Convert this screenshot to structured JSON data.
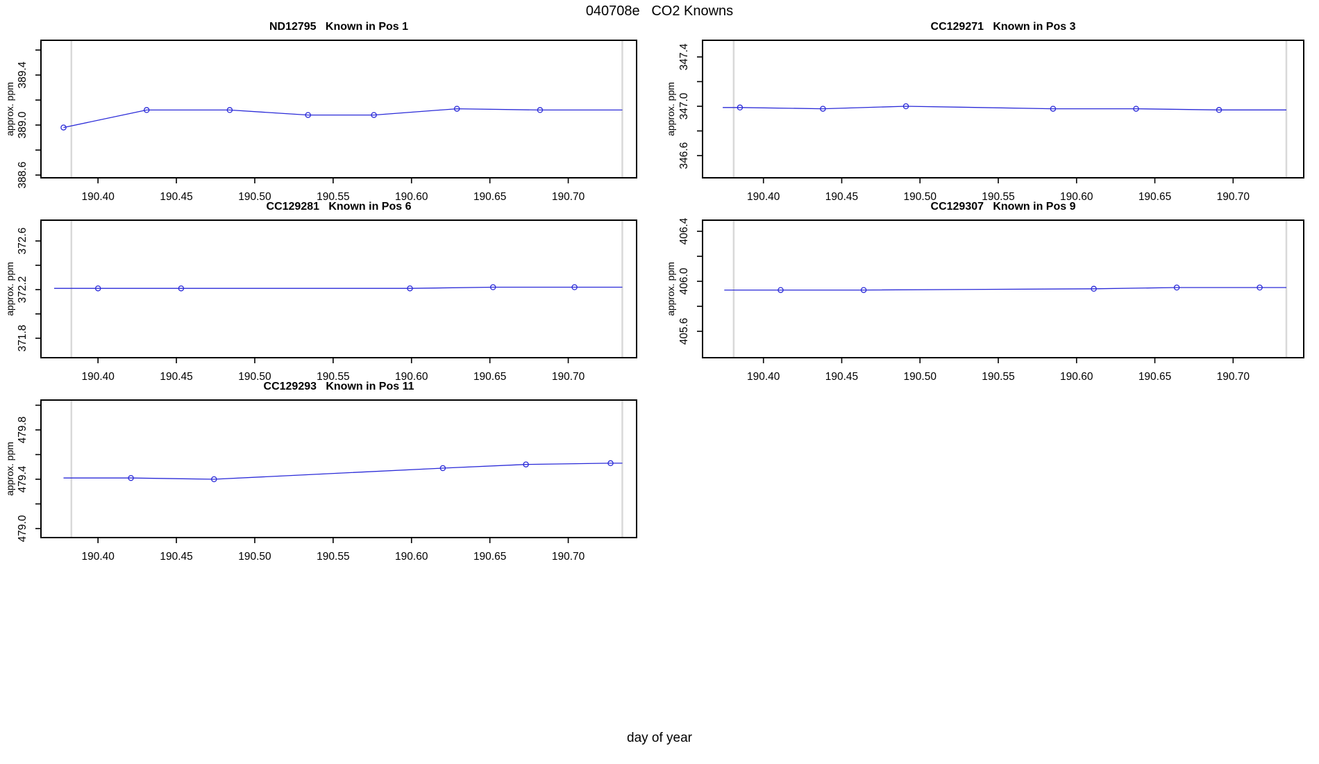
{
  "title": "040708e   CO2 Knowns",
  "xlabel": "day of year",
  "colors": {
    "line": "#2a2ad8",
    "marker": "#2a2ad8",
    "gray_vline": "#d9d9d9",
    "frame": "#000000",
    "text": "#000000",
    "background": "#ffffff"
  },
  "chart_data": [
    {
      "type": "line",
      "title": "ND12795   Known in Pos 1",
      "ylabel": "approx. ppm",
      "xlim": [
        190.3636,
        190.7436
      ],
      "ylim": [
        388.578,
        389.678
      ],
      "xticks": {
        "values": [
          190.4,
          190.45,
          190.5,
          190.55,
          190.6,
          190.65,
          190.7
        ],
        "labels": [
          "190.40",
          "190.45",
          "190.50",
          "190.55",
          "190.60",
          "190.65",
          "190.70"
        ]
      },
      "yticks": {
        "values": [
          388.6,
          388.8,
          389.0,
          389.2,
          389.4,
          389.6
        ],
        "labels": [
          "388.6",
          "",
          "389.0",
          "",
          "389.4",
          ""
        ]
      },
      "gray_vlines": [
        190.383,
        190.7345
      ],
      "line": {
        "x": [
          190.378,
          190.431,
          190.484,
          190.534,
          190.576,
          190.629,
          190.682,
          190.7345
        ],
        "y": [
          388.98,
          389.12,
          389.12,
          389.08,
          389.08,
          389.13,
          389.12,
          389.12
        ]
      },
      "markers": {
        "x": [
          190.378,
          190.431,
          190.484,
          190.534,
          190.576,
          190.629,
          190.682
        ],
        "y": [
          388.98,
          389.12,
          389.12,
          389.08,
          389.08,
          389.13,
          389.12
        ]
      }
    },
    {
      "type": "line",
      "title": "CC129271   Known in Pos 3",
      "ylabel": "approx. ppm",
      "xlim": [
        190.3611,
        190.7451
      ],
      "ylim": [
        346.42,
        347.535
      ],
      "xticks": {
        "values": [
          190.4,
          190.45,
          190.5,
          190.55,
          190.6,
          190.65,
          190.7
        ],
        "labels": [
          "190.40",
          "190.45",
          "190.50",
          "190.55",
          "190.60",
          "190.65",
          "190.70"
        ]
      },
      "yticks": {
        "values": [
          346.6,
          346.8,
          347.0,
          347.2,
          347.4
        ],
        "labels": [
          "346.6",
          "",
          "347.0",
          "",
          "347.4"
        ]
      },
      "gray_vlines": [
        190.381,
        190.734
      ],
      "line": {
        "x": [
          190.374,
          190.385,
          190.438,
          190.491,
          190.585,
          190.638,
          190.691,
          190.734
        ],
        "y": [
          346.99,
          346.99,
          346.98,
          347.0,
          346.98,
          346.98,
          346.97,
          346.97
        ]
      },
      "markers": {
        "x": [
          190.385,
          190.438,
          190.491,
          190.585,
          190.638,
          190.691
        ],
        "y": [
          346.99,
          346.98,
          347.0,
          346.98,
          346.98,
          346.97
        ]
      }
    },
    {
      "type": "line",
      "title": "CC129281   Known in Pos 6",
      "ylabel": "approx. ppm",
      "xlim": [
        190.3636,
        190.7436
      ],
      "ylim": [
        371.64,
        372.771
      ],
      "xticks": {
        "values": [
          190.4,
          190.45,
          190.5,
          190.55,
          190.6,
          190.65,
          190.7
        ],
        "labels": [
          "190.40",
          "190.45",
          "190.50",
          "190.55",
          "190.60",
          "190.65",
          "190.70"
        ]
      },
      "yticks": {
        "values": [
          371.8,
          372.0,
          372.2,
          372.4,
          372.6
        ],
        "labels": [
          "371.8",
          "",
          "372.2",
          "",
          "372.6"
        ]
      },
      "gray_vlines": [
        190.383,
        190.7345
      ],
      "line": {
        "x": [
          190.372,
          190.4,
          190.453,
          190.599,
          190.652,
          190.704,
          190.7345
        ],
        "y": [
          372.21,
          372.21,
          372.21,
          372.21,
          372.22,
          372.22,
          372.22
        ]
      },
      "markers": {
        "x": [
          190.4,
          190.453,
          190.599,
          190.652,
          190.704
        ],
        "y": [
          372.21,
          372.21,
          372.21,
          372.22,
          372.22
        ]
      }
    },
    {
      "type": "line",
      "title": "CC129307   Known in Pos 9",
      "ylabel": "approx. ppm",
      "xlim": [
        190.3611,
        190.7451
      ],
      "ylim": [
        405.389,
        406.489
      ],
      "xticks": {
        "values": [
          190.4,
          190.45,
          190.5,
          190.55,
          190.6,
          190.65,
          190.7
        ],
        "labels": [
          "190.40",
          "190.45",
          "190.50",
          "190.55",
          "190.60",
          "190.65",
          "190.70"
        ]
      },
      "yticks": {
        "values": [
          405.6,
          405.8,
          406.0,
          406.2,
          406.4
        ],
        "labels": [
          "405.6",
          "",
          "406.0",
          "",
          "406.4"
        ]
      },
      "gray_vlines": [
        190.381,
        190.734
      ],
      "line": {
        "x": [
          190.375,
          190.411,
          190.464,
          190.611,
          190.664,
          190.717,
          190.734
        ],
        "y": [
          405.93,
          405.93,
          405.93,
          405.94,
          405.95,
          405.95,
          405.95
        ]
      },
      "markers": {
        "x": [
          190.411,
          190.464,
          190.611,
          190.664,
          190.717
        ],
        "y": [
          405.93,
          405.93,
          405.94,
          405.95,
          405.95
        ]
      }
    },
    {
      "type": "line",
      "title": "CC129293   Known in Pos 11",
      "ylabel": "approx. ppm",
      "xlim": [
        190.3636,
        190.7436
      ],
      "ylim": [
        478.927,
        480.042
      ],
      "xticks": {
        "values": [
          190.4,
          190.45,
          190.5,
          190.55,
          190.6,
          190.65,
          190.7
        ],
        "labels": [
          "190.40",
          "190.45",
          "190.50",
          "190.55",
          "190.60",
          "190.65",
          "190.70"
        ]
      },
      "yticks": {
        "values": [
          479.0,
          479.2,
          479.4,
          479.6,
          479.8,
          480.0
        ],
        "labels": [
          "479.0",
          "",
          "479.4",
          "",
          "479.8",
          ""
        ]
      },
      "gray_vlines": [
        190.383,
        190.7345
      ],
      "line": {
        "x": [
          190.378,
          190.421,
          190.474,
          190.62,
          190.673,
          190.727,
          190.7345
        ],
        "y": [
          479.41,
          479.41,
          479.4,
          479.49,
          479.52,
          479.53,
          479.53
        ]
      },
      "markers": {
        "x": [
          190.421,
          190.474,
          190.62,
          190.673,
          190.727
        ],
        "y": [
          479.41,
          479.4,
          479.49,
          479.52,
          479.53
        ]
      }
    }
  ]
}
